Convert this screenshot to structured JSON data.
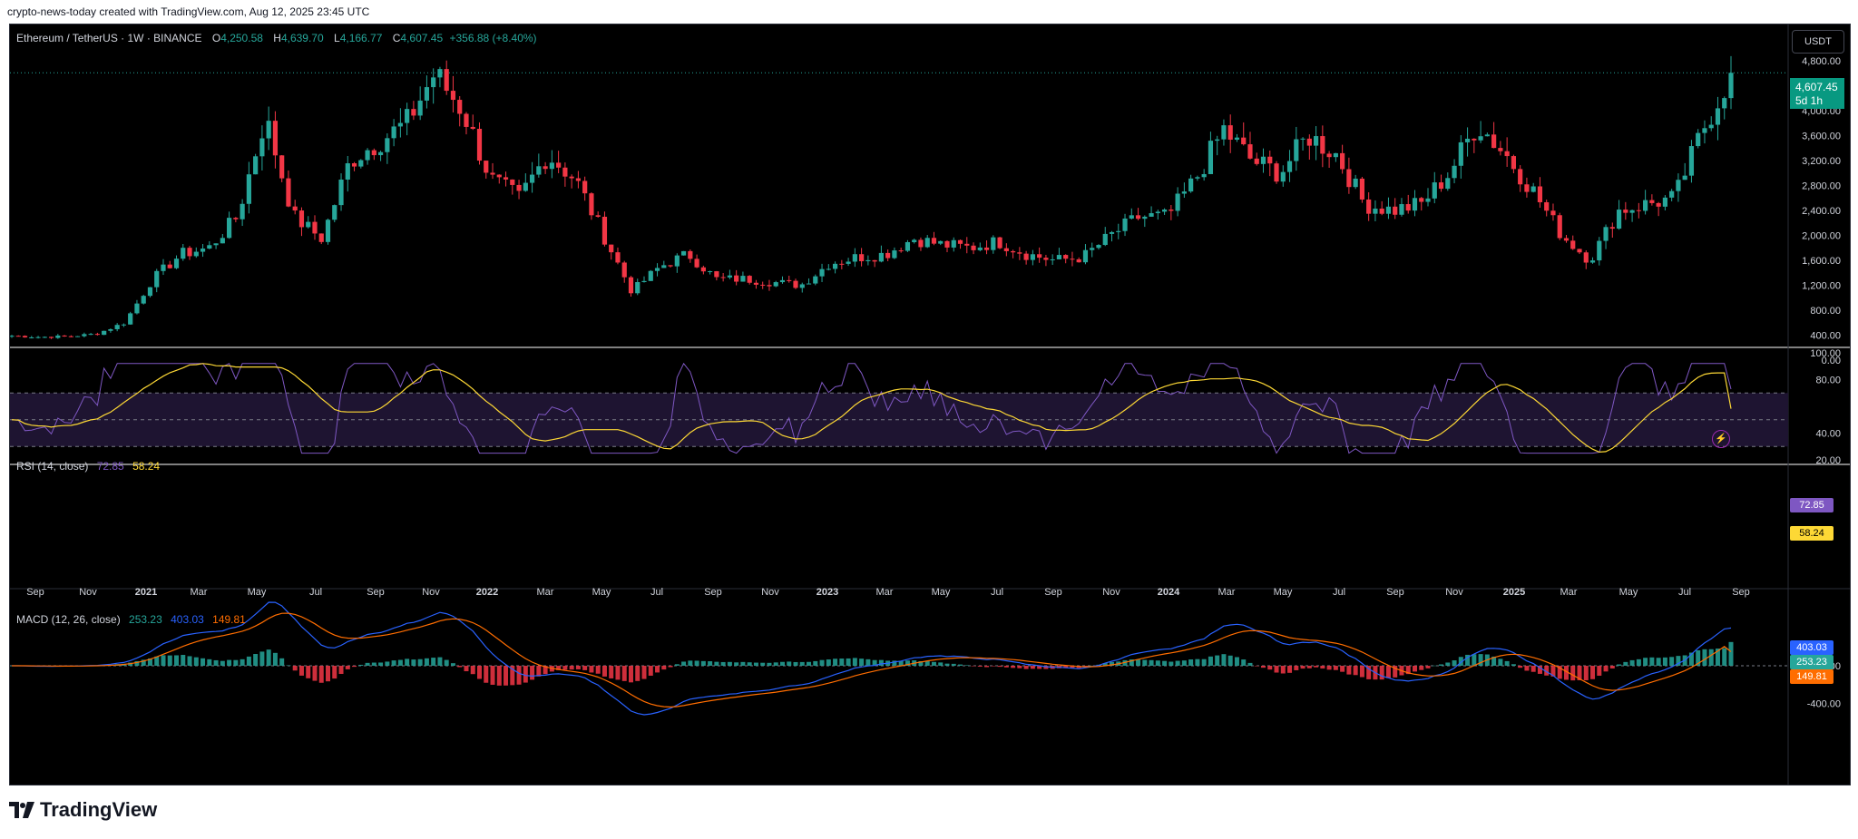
{
  "credit": "crypto-news-today created with TradingView.com, Aug 12, 2025 23:45 UTC",
  "symbol": {
    "title": "Ethereum / TetherUS · 1W · BINANCE",
    "o_label": "O",
    "o": "4,250.58",
    "h_label": "H",
    "h": "4,639.70",
    "l_label": "L",
    "l": "4,166.77",
    "c_label": "C",
    "c": "4,607.45",
    "change": "+356.88 (+8.40%)"
  },
  "currency": "USDT",
  "last_price": {
    "price": "4,607.45",
    "countdown": "5d 1h"
  },
  "colors": {
    "up": "#26a69a",
    "down": "#f23645",
    "rsi": "#7e57c2",
    "rsi_ma": "#fdd835",
    "macd": "#2962ff",
    "signal": "#ff6d00"
  },
  "price_axis": [
    "4,800.00",
    "4,000.00",
    "3,600.00",
    "3,200.00",
    "2,800.00",
    "2,400.00",
    "2,000.00",
    "1,600.00",
    "1,200.00",
    "800.00",
    "400.00",
    "0.00"
  ],
  "rsi_panel": {
    "label": "RSI (14, close)",
    "rsi": "72.85",
    "ma": "58.24",
    "axis": [
      "100.00",
      "80.00",
      "40.00",
      "20.00"
    ]
  },
  "macd_panel": {
    "label": "MACD (12, 26, close)",
    "hist": "253.23",
    "macd": "403.03",
    "signal": "149.81",
    "axis": [
      "0.00",
      "-400.00"
    ]
  },
  "time_axis": [
    "Sep",
    "Nov",
    "2021",
    "Mar",
    "May",
    "Jul",
    "Sep",
    "Nov",
    "2022",
    "Mar",
    "May",
    "Jul",
    "Sep",
    "Nov",
    "2023",
    "Mar",
    "May",
    "Jul",
    "Sep",
    "Nov",
    "2024",
    "Mar",
    "May",
    "Jul",
    "Sep",
    "Nov",
    "2025",
    "Mar",
    "May",
    "Jul",
    "Sep"
  ],
  "brand": "TradingView",
  "chart_data": {
    "type": "line",
    "title": "Ethereum / TetherUS · 1W · BINANCE",
    "xlabel": "",
    "ylabel": "",
    "ylim": [
      0,
      4800
    ],
    "anchors": [
      [
        "2020-08",
        390
      ],
      [
        "2020-09",
        370
      ],
      [
        "2020-10",
        380
      ],
      [
        "2020-11",
        420
      ],
      [
        "2020-12",
        600
      ],
      [
        "2021-01",
        1300
      ],
      [
        "2021-02",
        1700
      ],
      [
        "2021-03",
        1800
      ],
      [
        "2021-04",
        2300
      ],
      [
        "2021-05",
        3900
      ],
      [
        "2021-06",
        2300
      ],
      [
        "2021-07",
        1950
      ],
      [
        "2021-08",
        3200
      ],
      [
        "2021-09",
        3500
      ],
      [
        "2021-10",
        3800
      ],
      [
        "2021-11",
        4600
      ],
      [
        "2021-12",
        4000
      ],
      [
        "2022-01",
        2900
      ],
      [
        "2022-02",
        2600
      ],
      [
        "2022-03",
        3300
      ],
      [
        "2022-04",
        2900
      ],
      [
        "2022-05",
        2000
      ],
      [
        "2022-06",
        1100
      ],
      [
        "2022-07",
        1500
      ],
      [
        "2022-08",
        1700
      ],
      [
        "2022-09",
        1300
      ],
      [
        "2022-10",
        1300
      ],
      [
        "2022-11",
        1250
      ],
      [
        "2022-12",
        1200
      ],
      [
        "2023-01",
        1550
      ],
      [
        "2023-02",
        1650
      ],
      [
        "2023-03",
        1700
      ],
      [
        "2023-04",
        1950
      ],
      [
        "2023-05",
        1850
      ],
      [
        "2023-06",
        1800
      ],
      [
        "2023-07",
        1900
      ],
      [
        "2023-08",
        1700
      ],
      [
        "2023-09",
        1600
      ],
      [
        "2023-10",
        1650
      ],
      [
        "2023-11",
        2000
      ],
      [
        "2023-12",
        2300
      ],
      [
        "2024-01",
        2300
      ],
      [
        "2024-02",
        2900
      ],
      [
        "2024-03",
        3700
      ],
      [
        "2024-04",
        3200
      ],
      [
        "2024-05",
        3000
      ],
      [
        "2024-06",
        3600
      ],
      [
        "2024-07",
        3300
      ],
      [
        "2024-08",
        2500
      ],
      [
        "2024-09",
        2400
      ],
      [
        "2024-10",
        2500
      ],
      [
        "2024-11",
        3000
      ],
      [
        "2024-12",
        3800
      ],
      [
        "2025-01",
        3300
      ],
      [
        "2025-02",
        2700
      ],
      [
        "2025-03",
        2000
      ],
      [
        "2025-04",
        1600
      ],
      [
        "2025-05",
        2400
      ],
      [
        "2025-06",
        2500
      ],
      [
        "2025-07",
        2600
      ],
      [
        "2025-07b",
        3700
      ],
      [
        "2025-08",
        4607
      ]
    ],
    "rsi_ylim": [
      20,
      100
    ],
    "macd_ylim": [
      -550,
      650
    ]
  }
}
